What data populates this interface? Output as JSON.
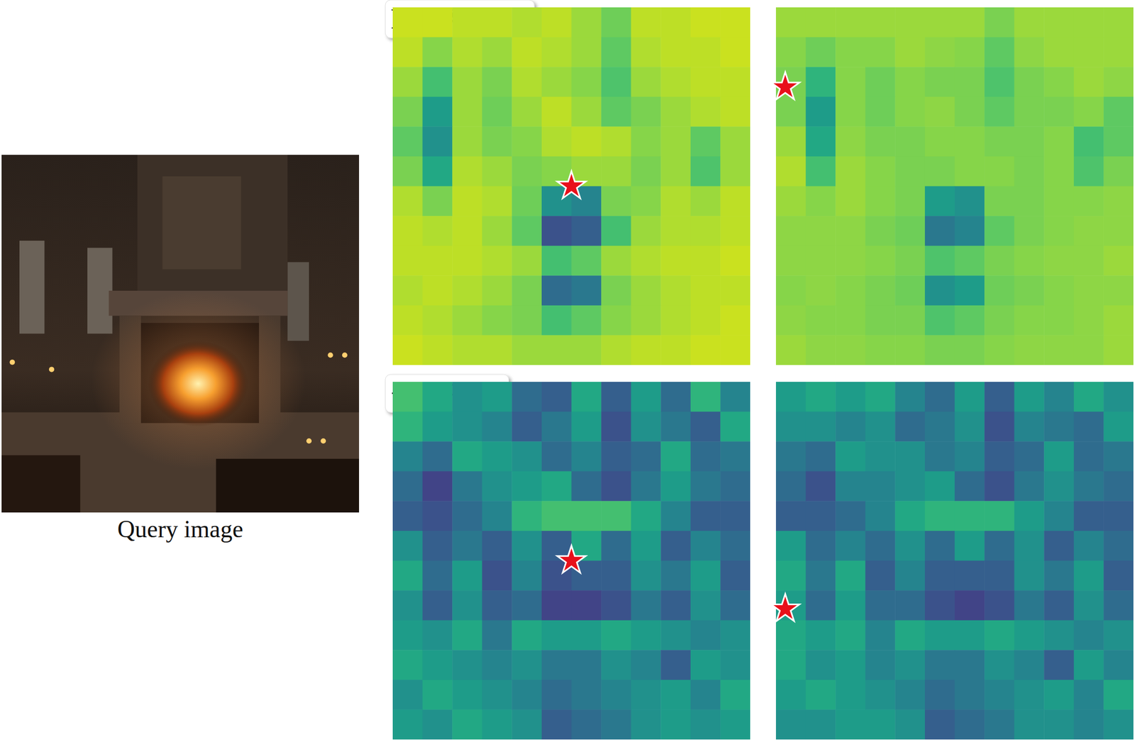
{
  "query_image": {
    "caption": "Query image"
  },
  "chart_data": [
    {
      "type": "heatmap",
      "title": "FLUX-VAE",
      "query": {
        "x": 0.5,
        "y": 0.5
      },
      "cells": [
        [
          0.92,
          0.92,
          0.9,
          0.9,
          0.88,
          0.9,
          0.85,
          0.78,
          0.9,
          0.9,
          0.92,
          0.92
        ],
        [
          0.9,
          0.82,
          0.88,
          0.85,
          0.9,
          0.88,
          0.85,
          0.75,
          0.88,
          0.9,
          0.9,
          0.92
        ],
        [
          0.85,
          0.7,
          0.85,
          0.8,
          0.88,
          0.85,
          0.82,
          0.72,
          0.85,
          0.88,
          0.9,
          0.9
        ],
        [
          0.8,
          0.55,
          0.85,
          0.78,
          0.85,
          0.9,
          0.85,
          0.75,
          0.8,
          0.85,
          0.88,
          0.9
        ],
        [
          0.75,
          0.5,
          0.85,
          0.8,
          0.82,
          0.88,
          0.9,
          0.88,
          0.82,
          0.85,
          0.75,
          0.85
        ],
        [
          0.8,
          0.6,
          0.88,
          0.85,
          0.8,
          0.82,
          0.85,
          0.85,
          0.8,
          0.85,
          0.72,
          0.85
        ],
        [
          0.88,
          0.8,
          0.9,
          0.88,
          0.78,
          0.5,
          0.45,
          0.8,
          0.82,
          0.88,
          0.85,
          0.9
        ],
        [
          0.9,
          0.88,
          0.9,
          0.85,
          0.75,
          0.25,
          0.3,
          0.7,
          0.85,
          0.88,
          0.88,
          0.9
        ],
        [
          0.9,
          0.9,
          0.9,
          0.88,
          0.85,
          0.7,
          0.75,
          0.85,
          0.88,
          0.9,
          0.9,
          0.92
        ],
        [
          0.88,
          0.9,
          0.88,
          0.85,
          0.8,
          0.35,
          0.4,
          0.8,
          0.85,
          0.88,
          0.9,
          0.9
        ],
        [
          0.9,
          0.88,
          0.85,
          0.82,
          0.8,
          0.7,
          0.75,
          0.82,
          0.85,
          0.88,
          0.9,
          0.92
        ],
        [
          0.92,
          0.9,
          0.88,
          0.88,
          0.85,
          0.85,
          0.85,
          0.88,
          0.9,
          0.9,
          0.92,
          0.92
        ]
      ]
    },
    {
      "type": "heatmap",
      "query": {
        "x": 0.026,
        "y": 0.223
      },
      "cells": [
        [
          0.85,
          0.85,
          0.85,
          0.85,
          0.85,
          0.85,
          0.85,
          0.8,
          0.85,
          0.85,
          0.85,
          0.85
        ],
        [
          0.82,
          0.78,
          0.82,
          0.82,
          0.85,
          0.83,
          0.82,
          0.75,
          0.83,
          0.85,
          0.85,
          0.85
        ],
        [
          0.8,
          0.65,
          0.82,
          0.78,
          0.82,
          0.8,
          0.8,
          0.72,
          0.8,
          0.82,
          0.85,
          0.83
        ],
        [
          0.8,
          0.55,
          0.82,
          0.78,
          0.82,
          0.83,
          0.8,
          0.75,
          0.8,
          0.8,
          0.82,
          0.75
        ],
        [
          0.85,
          0.6,
          0.83,
          0.8,
          0.8,
          0.82,
          0.82,
          0.8,
          0.8,
          0.82,
          0.7,
          0.75
        ],
        [
          0.88,
          0.7,
          0.85,
          0.82,
          0.8,
          0.8,
          0.82,
          0.82,
          0.8,
          0.82,
          0.72,
          0.8
        ],
        [
          0.85,
          0.82,
          0.85,
          0.82,
          0.8,
          0.55,
          0.5,
          0.8,
          0.8,
          0.82,
          0.82,
          0.83
        ],
        [
          0.83,
          0.83,
          0.83,
          0.8,
          0.78,
          0.4,
          0.45,
          0.75,
          0.8,
          0.82,
          0.83,
          0.83
        ],
        [
          0.83,
          0.83,
          0.83,
          0.82,
          0.8,
          0.72,
          0.75,
          0.8,
          0.82,
          0.83,
          0.83,
          0.85
        ],
        [
          0.82,
          0.83,
          0.82,
          0.8,
          0.78,
          0.5,
          0.55,
          0.78,
          0.8,
          0.82,
          0.83,
          0.83
        ],
        [
          0.83,
          0.82,
          0.82,
          0.8,
          0.8,
          0.72,
          0.75,
          0.8,
          0.82,
          0.82,
          0.83,
          0.85
        ],
        [
          0.85,
          0.83,
          0.83,
          0.82,
          0.82,
          0.8,
          0.8,
          0.82,
          0.83,
          0.83,
          0.83,
          0.85
        ]
      ]
    },
    {
      "type": "heatmap",
      "title": "+REPA-E",
      "query": {
        "x": 0.5,
        "y": 0.5
      },
      "cells": [
        [
          0.7,
          0.6,
          0.5,
          0.55,
          0.35,
          0.3,
          0.6,
          0.3,
          0.55,
          0.35,
          0.65,
          0.45
        ],
        [
          0.65,
          0.55,
          0.5,
          0.45,
          0.3,
          0.4,
          0.55,
          0.25,
          0.5,
          0.4,
          0.3,
          0.6
        ],
        [
          0.45,
          0.35,
          0.6,
          0.55,
          0.5,
          0.35,
          0.45,
          0.3,
          0.35,
          0.6,
          0.35,
          0.4
        ],
        [
          0.35,
          0.2,
          0.4,
          0.5,
          0.55,
          0.6,
          0.35,
          0.25,
          0.4,
          0.55,
          0.4,
          0.35
        ],
        [
          0.3,
          0.25,
          0.35,
          0.45,
          0.65,
          0.7,
          0.7,
          0.7,
          0.6,
          0.45,
          0.3,
          0.3
        ],
        [
          0.5,
          0.3,
          0.4,
          0.3,
          0.5,
          0.3,
          0.6,
          0.35,
          0.55,
          0.3,
          0.45,
          0.35
        ],
        [
          0.6,
          0.35,
          0.55,
          0.25,
          0.45,
          0.25,
          0.3,
          0.3,
          0.5,
          0.4,
          0.55,
          0.3
        ],
        [
          0.5,
          0.3,
          0.5,
          0.3,
          0.35,
          0.2,
          0.2,
          0.25,
          0.4,
          0.3,
          0.5,
          0.35
        ],
        [
          0.55,
          0.5,
          0.6,
          0.4,
          0.6,
          0.55,
          0.55,
          0.6,
          0.55,
          0.5,
          0.45,
          0.5
        ],
        [
          0.6,
          0.55,
          0.5,
          0.45,
          0.5,
          0.4,
          0.4,
          0.5,
          0.45,
          0.3,
          0.55,
          0.5
        ],
        [
          0.5,
          0.6,
          0.55,
          0.5,
          0.45,
          0.35,
          0.4,
          0.45,
          0.5,
          0.55,
          0.45,
          0.6
        ],
        [
          0.55,
          0.5,
          0.6,
          0.55,
          0.5,
          0.3,
          0.35,
          0.4,
          0.5,
          0.55,
          0.5,
          0.55
        ]
      ]
    },
    {
      "type": "heatmap",
      "query": {
        "x": 0.026,
        "y": 0.635
      },
      "cells": [
        [
          0.55,
          0.6,
          0.55,
          0.6,
          0.45,
          0.35,
          0.55,
          0.3,
          0.55,
          0.45,
          0.6,
          0.5
        ],
        [
          0.5,
          0.5,
          0.45,
          0.5,
          0.35,
          0.4,
          0.5,
          0.25,
          0.45,
          0.4,
          0.35,
          0.55
        ],
        [
          0.4,
          0.35,
          0.55,
          0.5,
          0.5,
          0.4,
          0.45,
          0.3,
          0.35,
          0.55,
          0.35,
          0.4
        ],
        [
          0.35,
          0.25,
          0.45,
          0.45,
          0.5,
          0.55,
          0.35,
          0.25,
          0.4,
          0.5,
          0.4,
          0.35
        ],
        [
          0.3,
          0.3,
          0.35,
          0.45,
          0.6,
          0.65,
          0.65,
          0.65,
          0.55,
          0.45,
          0.3,
          0.3
        ],
        [
          0.55,
          0.35,
          0.45,
          0.35,
          0.5,
          0.35,
          0.55,
          0.35,
          0.5,
          0.3,
          0.45,
          0.35
        ],
        [
          0.6,
          0.4,
          0.6,
          0.3,
          0.45,
          0.3,
          0.3,
          0.3,
          0.5,
          0.4,
          0.55,
          0.3
        ],
        [
          0.55,
          0.35,
          0.55,
          0.35,
          0.35,
          0.25,
          0.2,
          0.25,
          0.4,
          0.3,
          0.5,
          0.35
        ],
        [
          0.6,
          0.55,
          0.6,
          0.45,
          0.6,
          0.55,
          0.55,
          0.6,
          0.55,
          0.5,
          0.45,
          0.5
        ],
        [
          0.6,
          0.5,
          0.55,
          0.45,
          0.5,
          0.4,
          0.4,
          0.5,
          0.45,
          0.3,
          0.55,
          0.45
        ],
        [
          0.55,
          0.6,
          0.55,
          0.5,
          0.45,
          0.35,
          0.4,
          0.45,
          0.5,
          0.55,
          0.45,
          0.6
        ],
        [
          0.5,
          0.5,
          0.55,
          0.55,
          0.5,
          0.3,
          0.35,
          0.4,
          0.5,
          0.5,
          0.45,
          0.5
        ]
      ]
    }
  ]
}
